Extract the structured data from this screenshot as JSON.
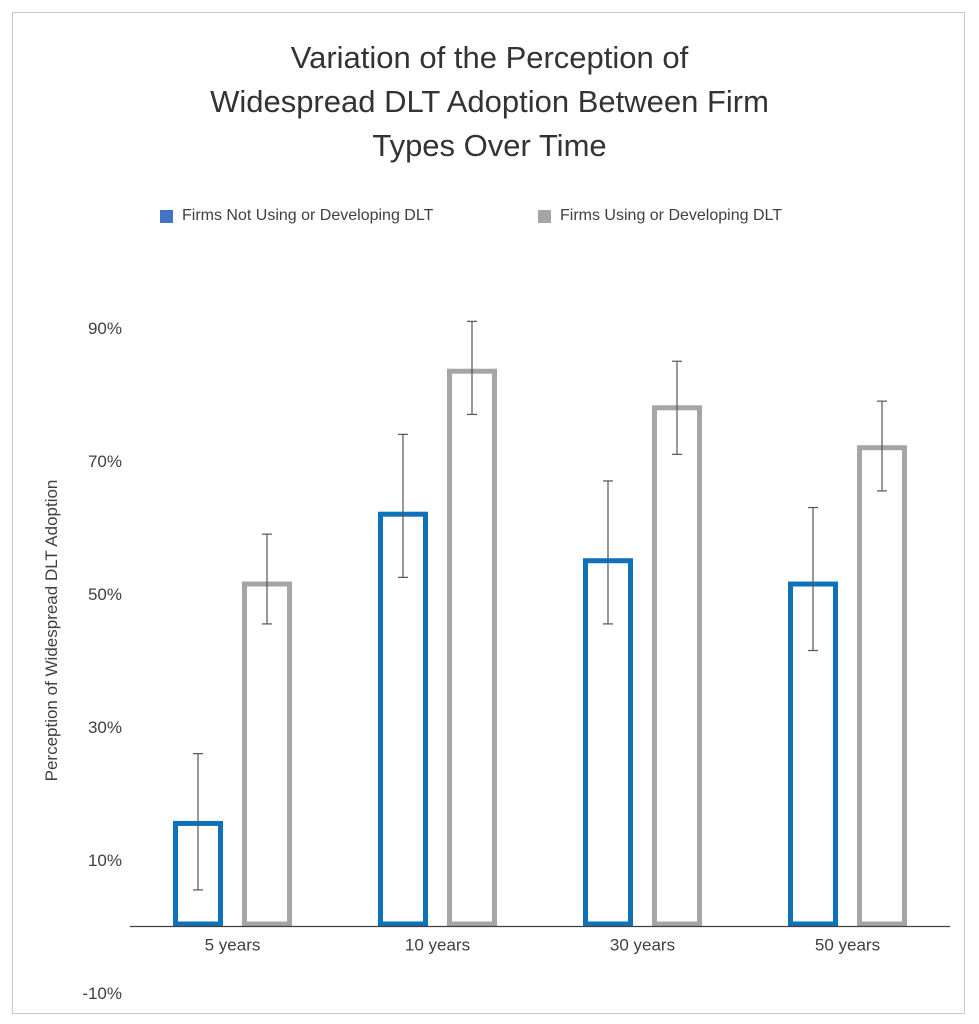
{
  "chart_data": {
    "type": "bar",
    "title_lines": [
      "Variation of the Perception of",
      "Widespread DLT Adoption Between Firm",
      "Types Over Time"
    ],
    "xlabel": "",
    "ylabel": "Perception of Widespread DLT Adoption",
    "categories": [
      "5 years",
      "10 years",
      "30 years",
      "50 years"
    ],
    "ylim": [
      -10,
      90
    ],
    "yticks": [
      90,
      70,
      50,
      30,
      10,
      -10
    ],
    "ytick_labels": [
      "90%",
      "70%",
      "50%",
      "30%",
      "10%",
      "-10%"
    ],
    "baseline": 0,
    "legend_position": "top",
    "grid": false,
    "series": [
      {
        "name": "Firms Not Using or Developing DLT",
        "legend_color": "#4472c4",
        "stroke_color": "#0e72bb",
        "values": [
          15.5,
          62,
          55,
          51.5
        ],
        "error_low": [
          5.5,
          52.5,
          45.5,
          41.5
        ],
        "error_high": [
          26,
          74,
          67,
          63
        ]
      },
      {
        "name": "Firms Using or Developing DLT",
        "legend_color": "#a5a5a5",
        "stroke_color": "#a5a5a5",
        "values": [
          51.5,
          83.5,
          78,
          72
        ],
        "error_low": [
          45.5,
          77,
          71,
          65.5
        ],
        "error_high": [
          59,
          91,
          85,
          79
        ]
      }
    ]
  }
}
